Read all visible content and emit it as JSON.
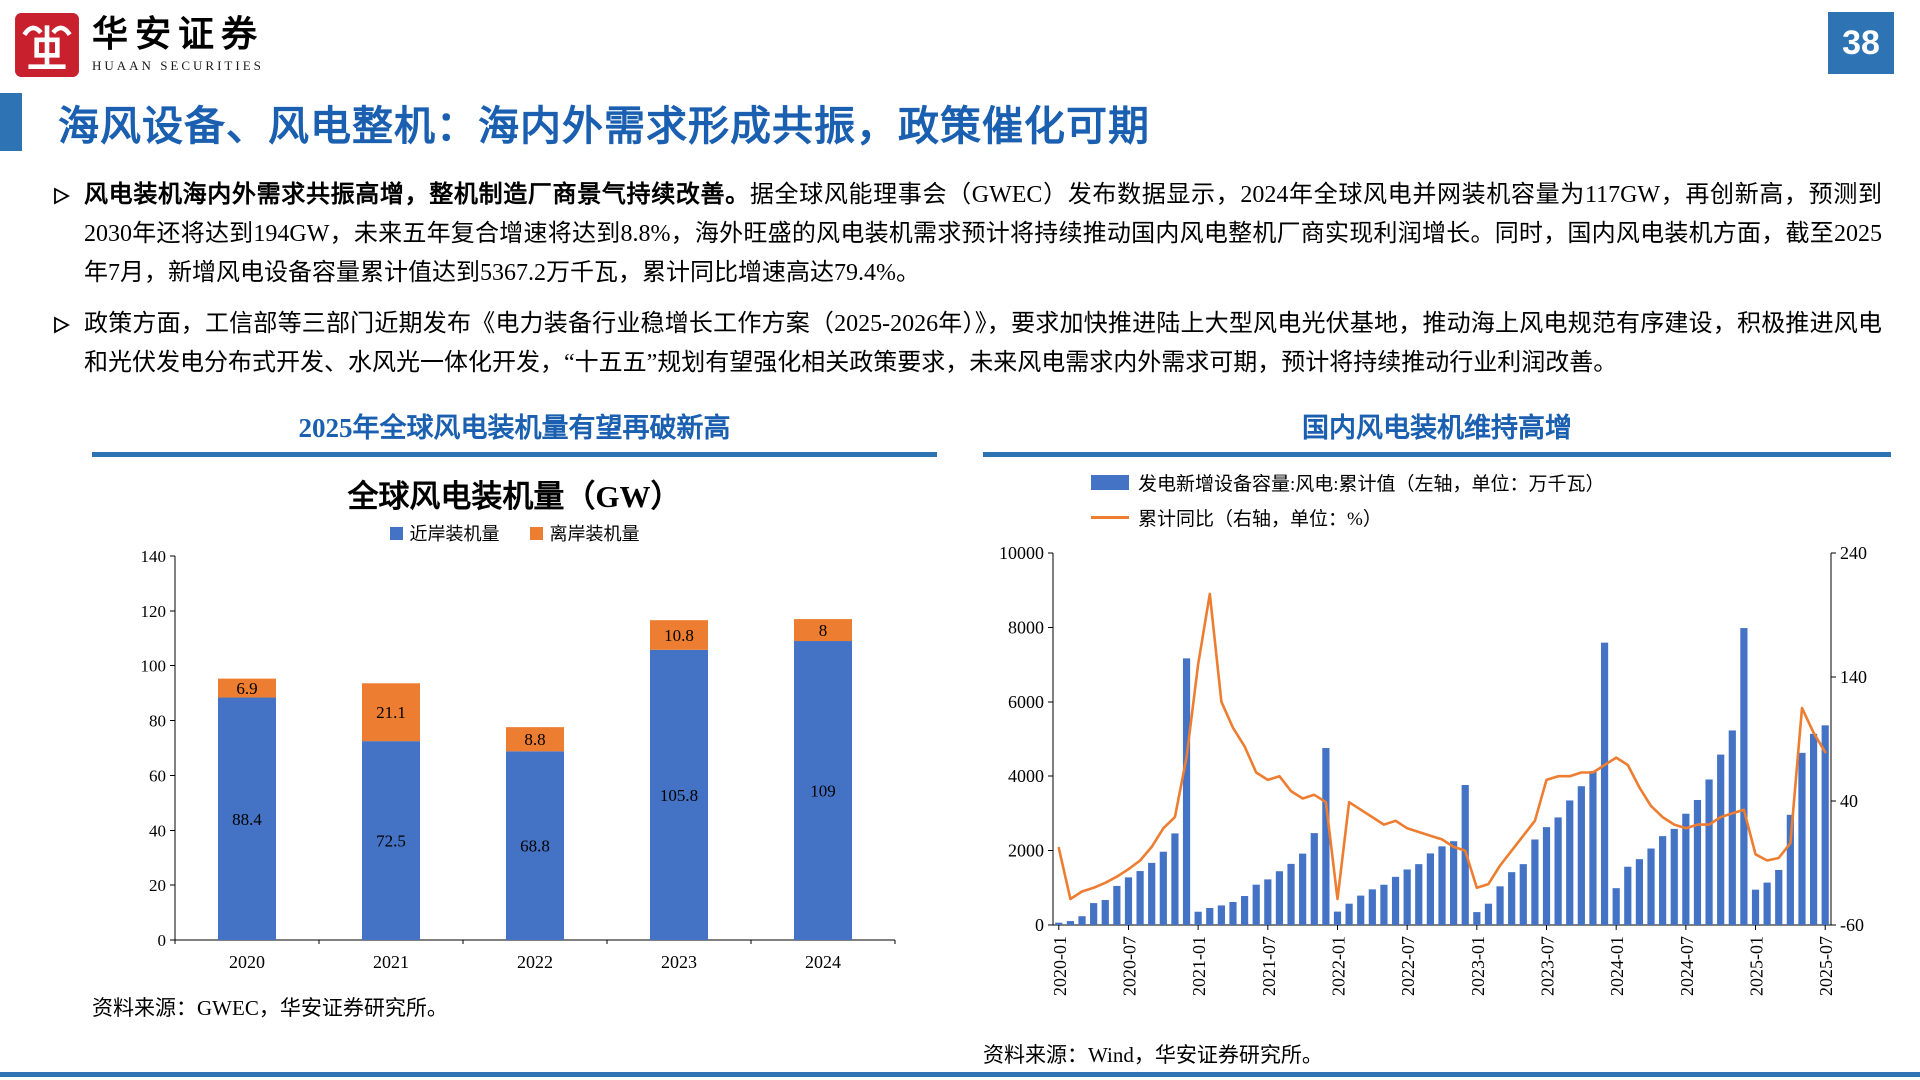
{
  "brand": {
    "name": "华安证券",
    "subtitle": "HUAAN SECURITIES"
  },
  "page": {
    "number": "38",
    "title": "海风设备、风电整机：海内外需求形成共振，政策催化可期"
  },
  "bullets": [
    {
      "lead": "风电装机海内外需求共振高增，整机制造厂商景气持续改善。",
      "text": "据全球风能理事会（GWEC）发布数据显示，2024年全球风电并网装机容量为117GW，再创新高，预测到2030年还将达到194GW，未来五年复合增速将达到8.8%，海外旺盛的风电装机需求预计将持续推动国内风电整机厂商实现利润增长。同时，国内风电装机方面，截至2025年7月，新增风电设备容量累计值达到5367.2万千瓦，累计同比增速高达79.4%。"
    },
    {
      "lead": "",
      "text": "政策方面，工信部等三部门近期发布《电力装备行业稳增长工作方案（2025-2026年）》，要求加快推进陆上大型风电光伏基地，推动海上风电规范有序建设，积极推进风电和光伏发电分布式开发、水风光一体化开发，“十五五”规划有望强化相关政策要求，未来风电需求内外需求可期，预计将持续推动行业利润改善。"
    }
  ],
  "colors": {
    "accent_blue": "#2E74B5",
    "title_blue": "#1A5FB0",
    "bar_blue": "#4472C4",
    "bar_orange": "#ED7D31"
  },
  "chart_data": [
    {
      "type": "bar",
      "stacked": true,
      "panel_title": "2025年全球风电装机量有望再破新高",
      "title": "全球风电装机量（GW）",
      "categories": [
        "2020",
        "2021",
        "2022",
        "2023",
        "2024"
      ],
      "series": [
        {
          "name": "近岸装机量",
          "color": "#4472C4",
          "values": [
            88.4,
            72.5,
            68.8,
            105.8,
            109
          ]
        },
        {
          "name": "离岸装机量",
          "color": "#ED7D31",
          "values": [
            6.9,
            21.1,
            8.8,
            10.8,
            8
          ]
        }
      ],
      "ylim": [
        0,
        140
      ],
      "yticks": [
        0,
        20,
        40,
        60,
        80,
        100,
        120,
        140
      ],
      "legend_position": "top",
      "grid": false,
      "source": "资料来源：GWEC，华安证券研究所。"
    },
    {
      "type": "bar+line",
      "panel_title": "国内风电装机维持高增",
      "legend": [
        {
          "label": "发电新增设备容量:风电:累计值（左轴，单位：万千瓦）",
          "marker": "bar",
          "color": "#4472C4"
        },
        {
          "label": "累计同比（右轴，单位：%）",
          "marker": "line",
          "color": "#ED7D31"
        }
      ],
      "x_start": "2020-01",
      "x_ticks": [
        {
          "label": "2020-01",
          "index": 0
        },
        {
          "label": "2020-07",
          "index": 6
        },
        {
          "label": "2021-01",
          "index": 12
        },
        {
          "label": "2021-07",
          "index": 18
        },
        {
          "label": "2022-01",
          "index": 24
        },
        {
          "label": "2022-07",
          "index": 30
        },
        {
          "label": "2023-01",
          "index": 36
        },
        {
          "label": "2023-07",
          "index": 42
        },
        {
          "label": "2024-01",
          "index": 48
        },
        {
          "label": "2024-07",
          "index": 54
        },
        {
          "label": "2025-01",
          "index": 60
        },
        {
          "label": "2025-07",
          "index": 66
        }
      ],
      "bars": [
        62,
        105,
        236,
        589,
        672,
        1050,
        1280,
        1450,
        1670,
        1970,
        2462,
        7167,
        357,
        457,
        526,
        619,
        779,
        1084,
        1226,
        1445,
        1643,
        1919,
        2470,
        4757,
        360,
        573,
        790,
        958,
        1082,
        1294,
        1493,
        1636,
        1924,
        2114,
        2252,
        3763,
        347,
        573,
        1040,
        1420,
        1636,
        2299,
        2631,
        2892,
        3348,
        3731,
        4139,
        7590,
        990,
        1566,
        1770,
        2056,
        2389,
        2584,
        2991,
        3361,
        3912,
        4581,
        5230,
        7982,
        950,
        1140,
        1480,
        2962,
        4628,
        5139,
        5367.2
      ],
      "line": [
        2,
        -39,
        -33,
        -30,
        -26,
        -21,
        -15,
        -8,
        3,
        18,
        27,
        75,
        150,
        207,
        120,
        99,
        84,
        63,
        57,
        60,
        48,
        42,
        45,
        39,
        -39,
        39,
        33,
        27,
        21,
        24,
        18,
        15,
        12,
        9,
        3,
        0,
        -30,
        -27,
        -12,
        0,
        12,
        24,
        57,
        60,
        60,
        63,
        63,
        69,
        75,
        69,
        51,
        36,
        27,
        21,
        18,
        21,
        21,
        27,
        30,
        33,
        -3,
        -8,
        -6,
        6,
        115,
        95,
        79.4
      ],
      "left_ylim": [
        0,
        10000
      ],
      "left_yticks": [
        0,
        2000,
        4000,
        6000,
        8000,
        10000
      ],
      "right_ylim": [
        -60,
        240
      ],
      "right_yticks": [
        -60,
        40,
        140,
        240
      ],
      "bar_color": "#4472C4",
      "line_color": "#ED7D31",
      "grid": false,
      "source": "资料来源：Wind，华安证券研究所。"
    }
  ]
}
